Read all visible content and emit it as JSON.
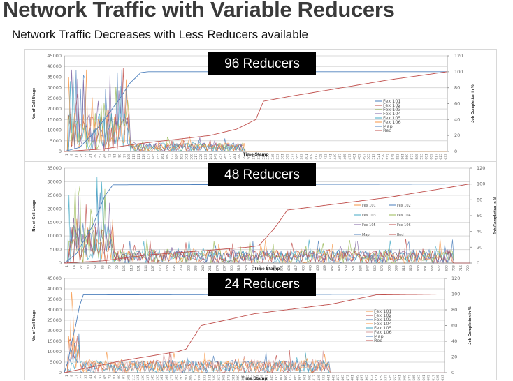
{
  "page": {
    "title": "Network Traffic with Variable Reducers",
    "subtitle": "Network Traffic Decreases with Less Reducers available"
  },
  "panels": [
    {
      "badge": "96 Reducers"
    },
    {
      "badge": "48 Reducers"
    },
    {
      "badge": "24 Reducers"
    }
  ],
  "chart_data": [
    {
      "type": "line",
      "title": "96 Reducers",
      "xlabel": "Time Stamp",
      "ylabel": "No. of Cell Usage",
      "y2label": "Job Completion in %",
      "ylim": [
        0,
        45000
      ],
      "yticks": [
        0,
        5000,
        10000,
        15000,
        20000,
        25000,
        30000,
        35000,
        40000,
        45000
      ],
      "y2lim": [
        0,
        120
      ],
      "y2ticks": [
        0,
        20,
        40,
        60,
        80,
        100,
        120
      ],
      "legend": [
        "Fex 101",
        "Fex 102",
        "Fex 103",
        "Fex 104",
        "Fex 105",
        "Fex 106",
        "Map",
        "Red"
      ],
      "legend_layout": "column",
      "legend_position": "right-center",
      "grid": true,
      "series_colors": {
        "Fex 101": "#4a7ebb",
        "Fex 102": "#be4b48",
        "Fex 103": "#98b954",
        "Fex 104": "#7d60a0",
        "Fex 105": "#46aac5",
        "Fex 106": "#f79646",
        "Map": "#4f81bd",
        "Red": "#c0504d"
      },
      "traffic_end_fraction": 0.47,
      "burst_end_fraction": 0.17,
      "burst_peak": 41000,
      "background_level": 4000,
      "map_curve": {
        "x": [
          0,
          0.04,
          0.08,
          0.12,
          0.15,
          0.17,
          0.2,
          0.22,
          1.0
        ],
        "y": [
          0,
          5,
          25,
          50,
          70,
          85,
          99,
          100,
          100
        ]
      },
      "red_curve": {
        "x": [
          0,
          0.1,
          0.2,
          0.38,
          0.45,
          0.5,
          0.52,
          0.6,
          0.85,
          1.0
        ],
        "y": [
          0,
          3,
          10,
          20,
          28,
          40,
          63,
          70,
          90,
          100
        ]
      }
    },
    {
      "type": "line",
      "title": "48 Reducers",
      "xlabel": "Time Stamp",
      "ylabel": "No. of Cell Usage",
      "y2label": "Job Completion in %",
      "ylim": [
        0,
        35000
      ],
      "yticks": [
        0,
        5000,
        10000,
        15000,
        20000,
        25000,
        30000,
        35000
      ],
      "y2lim": [
        0,
        120
      ],
      "y2ticks": [
        0,
        20,
        40,
        60,
        80,
        100,
        120
      ],
      "xticks": [
        "1",
        "14",
        "27",
        "40",
        "53",
        "66",
        "79",
        "92",
        "105",
        "118",
        "131",
        "144",
        "157",
        "170",
        "183",
        "196",
        "209",
        "222",
        "235",
        "248",
        "261",
        "274",
        "287",
        "300",
        "313",
        "326",
        "339",
        "352",
        "365",
        "378",
        "391",
        "404",
        "417",
        "430",
        "443",
        "456",
        "469",
        "482",
        "495",
        "508",
        "521",
        "534",
        "547",
        "560",
        "573",
        "586",
        "599",
        "612",
        "625",
        "638",
        "651",
        "664",
        "677",
        "690",
        "703",
        "716",
        "729"
      ],
      "legend": [
        "Fex 101",
        "Fex 102",
        "Fex 103",
        "Fex 104",
        "Fex 105",
        "Fex 106",
        "Map",
        "Red"
      ],
      "legend_layout": "two-column",
      "legend_position": "right-center",
      "grid": true,
      "series_colors": {
        "Fex 101": "#f79646",
        "Fex 102": "#4a7ebb",
        "Fex 103": "#46aac5",
        "Fex 104": "#98b954",
        "Fex 105": "#7d60a0",
        "Fex 106": "#be4b48",
        "Map": "#4f81bd",
        "Red": "#c0504d"
      },
      "traffic_end_fraction": 0.96,
      "burst_end_fraction": 0.12,
      "burst_peak": 33000,
      "background_level": 5000,
      "map_curve": {
        "x": [
          0,
          0.03,
          0.05,
          0.07,
          0.08,
          0.1,
          0.12,
          1.0
        ],
        "y": [
          0,
          12,
          30,
          47,
          60,
          85,
          99,
          100
        ]
      },
      "red_curve": {
        "x": [
          0,
          0.1,
          0.2,
          0.45,
          0.48,
          0.52,
          0.55,
          0.8,
          1.0
        ],
        "y": [
          0,
          3,
          10,
          20,
          22,
          45,
          67,
          83,
          100
        ]
      }
    },
    {
      "type": "line",
      "title": "24 Reducers",
      "xlabel": "Time Stamp",
      "ylabel": "No. of Cell Usage",
      "y2label": "Job Completion in %",
      "ylim": [
        0,
        45000
      ],
      "yticks": [
        0,
        5000,
        10000,
        15000,
        20000,
        25000,
        30000,
        35000,
        40000,
        45000
      ],
      "y2lim": [
        0,
        120
      ],
      "y2ticks": [
        0,
        20,
        40,
        60,
        80,
        100,
        120
      ],
      "legend": [
        "Fex 101",
        "Fex 102",
        "Fex 103",
        "Fex 104",
        "Fex 105",
        "Fex 106",
        "Map",
        "Red"
      ],
      "legend_layout": "column",
      "legend_position": "right-center",
      "grid": true,
      "series_colors": {
        "Fex 101": "#f79646",
        "Fex 102": "#be4b48",
        "Fex 103": "#4a7ebb",
        "Fex 104": "#f79646",
        "Fex 105": "#46aac5",
        "Fex 106": "#d9a0a0",
        "Map": "#4f81bd",
        "Red": "#c0504d"
      },
      "traffic_end_fraction": 0.7,
      "burst_end_fraction": 0.04,
      "burst_peak": 42000,
      "background_level": 6000,
      "map_curve": {
        "x": [
          0,
          0.01,
          0.02,
          0.03,
          0.04,
          0.05,
          1.0
        ],
        "y": [
          0,
          15,
          40,
          60,
          85,
          99,
          100
        ]
      },
      "red_curve": {
        "x": [
          0,
          0.15,
          0.3,
          0.32,
          0.34,
          0.36,
          0.5,
          0.7,
          0.82,
          1.0
        ],
        "y": [
          0,
          15,
          27,
          30,
          45,
          60,
          75,
          87,
          99,
          100
        ]
      }
    }
  ]
}
